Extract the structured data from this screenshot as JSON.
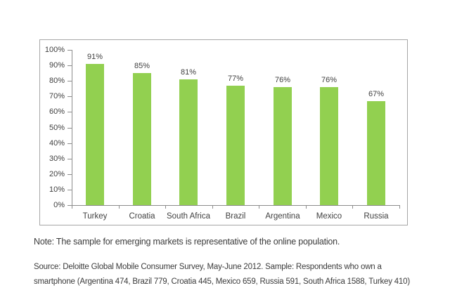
{
  "note": "Note: The sample for emerging markets is representative of the online population.",
  "source_line1": "Source: Deloitte Global Mobile Consumer Survey, May-June 2012. Sample: Respondents who own a",
  "source_line2": "smartphone (Argentina 474, Brazil 779, Croatia 445, Mexico 659, Russia 591, South Africa 1588, Turkey 410)",
  "chart_data": {
    "type": "bar",
    "categories": [
      "Turkey",
      "Croatia",
      "South Africa",
      "Brazil",
      "Argentina",
      "Mexico",
      "Russia"
    ],
    "values": [
      91,
      85,
      81,
      77,
      76,
      76,
      67
    ],
    "data_labels": [
      "91%",
      "85%",
      "81%",
      "77%",
      "76%",
      "76%",
      "67%"
    ],
    "title": "",
    "xlabel": "",
    "ylabel": "",
    "ylim": [
      0,
      100
    ],
    "ytick_step": 10,
    "ytick_suffix": "%",
    "grid": false,
    "legend": "none",
    "bar_color": "#92d050",
    "axis_color": "#8c8c8c",
    "label_color": "#404040",
    "frame_border_color": "#a6a6a6",
    "background_color": "#ffffff"
  }
}
